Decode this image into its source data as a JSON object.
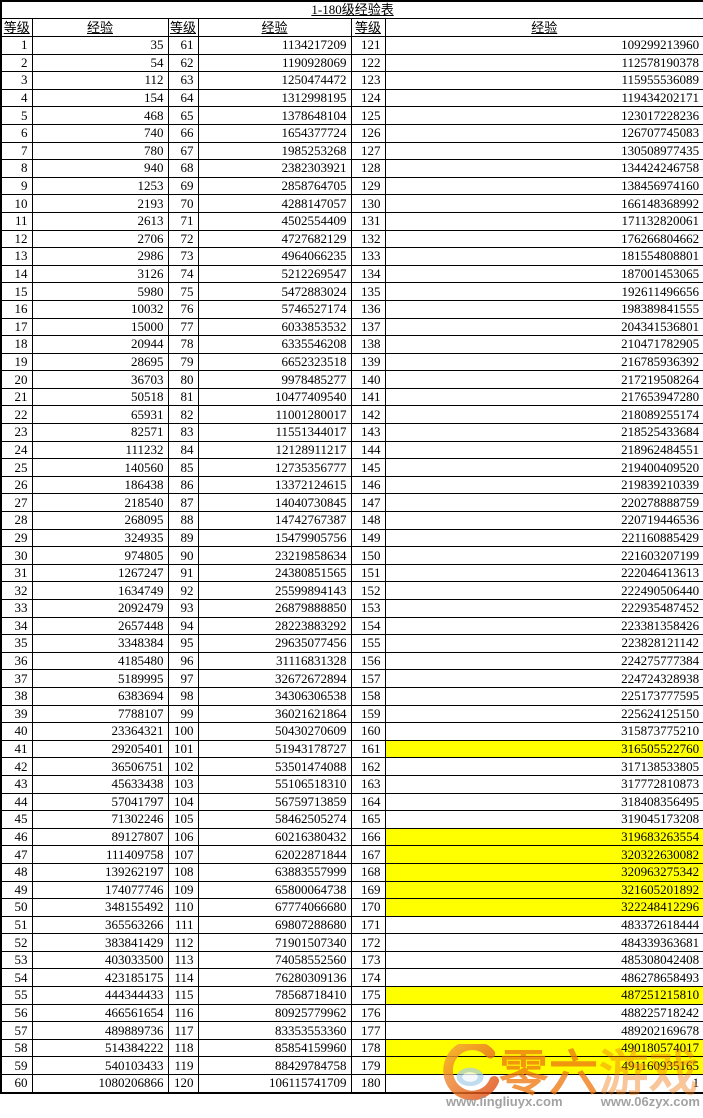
{
  "title": "1-180级经验表",
  "header": {
    "level_label": "等级",
    "exp_label": "经验"
  },
  "colors": {
    "highlight": "#ffff00",
    "border": "#000000",
    "watermark_orange": "#ee7a12",
    "watermark_gray": "#9b9b9b",
    "watermark_logo_blue": "#a9cde9"
  },
  "watermark": {
    "brand_left": "零六",
    "brand_right": "游戏",
    "url_left": "www.lingliuyx.com",
    "url_right": "www.06zyx.com"
  },
  "table": {
    "rows": [
      {
        "cells": [
          "1",
          "35",
          "61",
          "1134217209",
          "121",
          "109299213960"
        ],
        "hl": false
      },
      {
        "cells": [
          "2",
          "54",
          "62",
          "1190928069",
          "122",
          "112578190378"
        ],
        "hl": false
      },
      {
        "cells": [
          "3",
          "112",
          "63",
          "1250474472",
          "123",
          "115955536089"
        ],
        "hl": false
      },
      {
        "cells": [
          "4",
          "154",
          "64",
          "1312998195",
          "124",
          "119434202171"
        ],
        "hl": false
      },
      {
        "cells": [
          "5",
          "468",
          "65",
          "1378648104",
          "125",
          "123017228236"
        ],
        "hl": false
      },
      {
        "cells": [
          "6",
          "740",
          "66",
          "1654377724",
          "126",
          "126707745083"
        ],
        "hl": false
      },
      {
        "cells": [
          "7",
          "780",
          "67",
          "1985253268",
          "127",
          "130508977435"
        ],
        "hl": false
      },
      {
        "cells": [
          "8",
          "940",
          "68",
          "2382303921",
          "128",
          "134424246758"
        ],
        "hl": false
      },
      {
        "cells": [
          "9",
          "1253",
          "69",
          "2858764705",
          "129",
          "138456974160"
        ],
        "hl": false
      },
      {
        "cells": [
          "10",
          "2193",
          "70",
          "4288147057",
          "130",
          "166148368992"
        ],
        "hl": false
      },
      {
        "cells": [
          "11",
          "2613",
          "71",
          "4502554409",
          "131",
          "171132820061"
        ],
        "hl": false
      },
      {
        "cells": [
          "12",
          "2706",
          "72",
          "4727682129",
          "132",
          "176266804662"
        ],
        "hl": false
      },
      {
        "cells": [
          "13",
          "2986",
          "73",
          "4964066235",
          "133",
          "181554808801"
        ],
        "hl": false
      },
      {
        "cells": [
          "14",
          "3126",
          "74",
          "5212269547",
          "134",
          "187001453065"
        ],
        "hl": false
      },
      {
        "cells": [
          "15",
          "5980",
          "75",
          "5472883024",
          "135",
          "192611496656"
        ],
        "hl": false
      },
      {
        "cells": [
          "16",
          "10032",
          "76",
          "5746527174",
          "136",
          "198389841555"
        ],
        "hl": false
      },
      {
        "cells": [
          "17",
          "15000",
          "77",
          "6033853532",
          "137",
          "204341536801"
        ],
        "hl": false
      },
      {
        "cells": [
          "18",
          "20944",
          "78",
          "6335546208",
          "138",
          "210471782905"
        ],
        "hl": false
      },
      {
        "cells": [
          "19",
          "28695",
          "79",
          "6652323518",
          "139",
          "216785936392"
        ],
        "hl": false
      },
      {
        "cells": [
          "20",
          "36703",
          "80",
          "9978485277",
          "140",
          "217219508264"
        ],
        "hl": false
      },
      {
        "cells": [
          "21",
          "50518",
          "81",
          "10477409540",
          "141",
          "217653947280"
        ],
        "hl": false
      },
      {
        "cells": [
          "22",
          "65931",
          "82",
          "11001280017",
          "142",
          "218089255174"
        ],
        "hl": false
      },
      {
        "cells": [
          "23",
          "82571",
          "83",
          "11551344017",
          "143",
          "218525433684"
        ],
        "hl": false
      },
      {
        "cells": [
          "24",
          "111232",
          "84",
          "12128911217",
          "144",
          "218962484551"
        ],
        "hl": false
      },
      {
        "cells": [
          "25",
          "140560",
          "85",
          "12735356777",
          "145",
          "219400409520"
        ],
        "hl": false
      },
      {
        "cells": [
          "26",
          "186438",
          "86",
          "13372124615",
          "146",
          "219839210339"
        ],
        "hl": false
      },
      {
        "cells": [
          "27",
          "218540",
          "87",
          "14040730845",
          "147",
          "220278888759"
        ],
        "hl": false
      },
      {
        "cells": [
          "28",
          "268095",
          "88",
          "14742767387",
          "148",
          "220719446536"
        ],
        "hl": false
      },
      {
        "cells": [
          "29",
          "324935",
          "89",
          "15479905756",
          "149",
          "221160885429"
        ],
        "hl": false
      },
      {
        "cells": [
          "30",
          "974805",
          "90",
          "23219858634",
          "150",
          "221603207199"
        ],
        "hl": false
      },
      {
        "cells": [
          "31",
          "1267247",
          "91",
          "24380851565",
          "151",
          "222046413613"
        ],
        "hl": false
      },
      {
        "cells": [
          "32",
          "1634749",
          "92",
          "25599894143",
          "152",
          "222490506440"
        ],
        "hl": false
      },
      {
        "cells": [
          "33",
          "2092479",
          "93",
          "26879888850",
          "153",
          "222935487452"
        ],
        "hl": false
      },
      {
        "cells": [
          "34",
          "2657448",
          "94",
          "28223883292",
          "154",
          "223381358426"
        ],
        "hl": false
      },
      {
        "cells": [
          "35",
          "3348384",
          "95",
          "29635077456",
          "155",
          "223828121142"
        ],
        "hl": false
      },
      {
        "cells": [
          "36",
          "4185480",
          "96",
          "31116831328",
          "156",
          "224275777384"
        ],
        "hl": false
      },
      {
        "cells": [
          "37",
          "5189995",
          "97",
          "32672672894",
          "157",
          "224724328938"
        ],
        "hl": false
      },
      {
        "cells": [
          "38",
          "6383694",
          "98",
          "34306306538",
          "158",
          "225173777595"
        ],
        "hl": false
      },
      {
        "cells": [
          "39",
          "7788107",
          "99",
          "36021621864",
          "159",
          "225624125150"
        ],
        "hl": false
      },
      {
        "cells": [
          "40",
          "23364321",
          "100",
          "50430270609",
          "160",
          "315873775210"
        ],
        "hl": false
      },
      {
        "cells": [
          "41",
          "29205401",
          "101",
          "51943178727",
          "161",
          "316505522760"
        ],
        "hl": true
      },
      {
        "cells": [
          "42",
          "36506751",
          "102",
          "53501474088",
          "162",
          "317138533805"
        ],
        "hl": false
      },
      {
        "cells": [
          "43",
          "45633438",
          "103",
          "55106518310",
          "163",
          "317772810873"
        ],
        "hl": false
      },
      {
        "cells": [
          "44",
          "57041797",
          "104",
          "56759713859",
          "164",
          "318408356495"
        ],
        "hl": false
      },
      {
        "cells": [
          "45",
          "71302246",
          "105",
          "58462505274",
          "165",
          "319045173208"
        ],
        "hl": false
      },
      {
        "cells": [
          "46",
          "89127807",
          "106",
          "60216380432",
          "166",
          "319683263554"
        ],
        "hl": true
      },
      {
        "cells": [
          "47",
          "111409758",
          "107",
          "62022871844",
          "167",
          "320322630082"
        ],
        "hl": true
      },
      {
        "cells": [
          "48",
          "139262197",
          "108",
          "63883557999",
          "168",
          "320963275342"
        ],
        "hl": true
      },
      {
        "cells": [
          "49",
          "174077746",
          "109",
          "65800064738",
          "169",
          "321605201892"
        ],
        "hl": true
      },
      {
        "cells": [
          "50",
          "348155492",
          "110",
          "67774066680",
          "170",
          "322248412296"
        ],
        "hl": true
      },
      {
        "cells": [
          "51",
          "365563266",
          "111",
          "69807288680",
          "171",
          "483372618444"
        ],
        "hl": false
      },
      {
        "cells": [
          "52",
          "383841429",
          "112",
          "71901507340",
          "172",
          "484339363681"
        ],
        "hl": false
      },
      {
        "cells": [
          "53",
          "403033500",
          "113",
          "74058552560",
          "173",
          "485308042408"
        ],
        "hl": false
      },
      {
        "cells": [
          "54",
          "423185175",
          "114",
          "76280309136",
          "174",
          "486278658493"
        ],
        "hl": false
      },
      {
        "cells": [
          "55",
          "444344433",
          "115",
          "78568718410",
          "175",
          "487251215810"
        ],
        "hl": true
      },
      {
        "cells": [
          "56",
          "466561654",
          "116",
          "80925779962",
          "176",
          "488225718242"
        ],
        "hl": false
      },
      {
        "cells": [
          "57",
          "489889736",
          "117",
          "83353553360",
          "177",
          "489202169678"
        ],
        "hl": false
      },
      {
        "cells": [
          "58",
          "514384222",
          "118",
          "85854159960",
          "178",
          "490180574017"
        ],
        "hl": true
      },
      {
        "cells": [
          "59",
          "540103433",
          "119",
          "88429784758",
          "179",
          "491160935165"
        ],
        "hl": true
      },
      {
        "cells": [
          "60",
          "1080206866",
          "120",
          "106115741709",
          "180",
          "1"
        ],
        "hl": false
      }
    ]
  }
}
